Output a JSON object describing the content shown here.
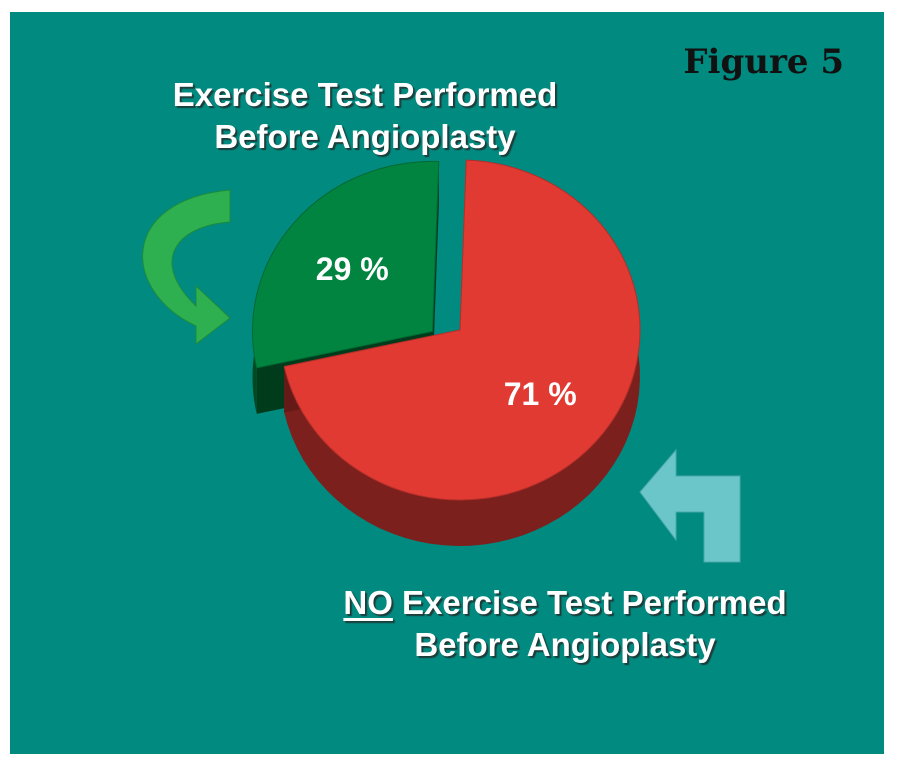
{
  "figure_label": "Figure 5",
  "colors": {
    "background": "#008a80",
    "exercise_slice": "#00843f",
    "no_exercise_slice": "#e03a33",
    "arrow_green": "#2fb050",
    "arrow_cyan": "#6ac6c9"
  },
  "captions": {
    "top_line1": "Exercise Test Performed",
    "top_line2": "Before Angioplasty",
    "bottom_prefix": "NO",
    "bottom_line1_rest": " Exercise Test Performed",
    "bottom_line2": "Before Angioplasty"
  },
  "chart_data": {
    "type": "pie",
    "title": "",
    "slices": [
      {
        "label": "Exercise Test Performed Before Angioplasty",
        "value": 29,
        "display": "29 %",
        "color": "#00843f",
        "exploded": true
      },
      {
        "label": "NO Exercise Test Performed Before Angioplasty",
        "value": 71,
        "display": "71 %",
        "color": "#e03a33",
        "exploded": false
      }
    ],
    "legend": "none",
    "three_d": true
  },
  "icons": {
    "top_arrow": "curved-arrow-icon",
    "bottom_arrow": "corner-arrow-icon"
  }
}
